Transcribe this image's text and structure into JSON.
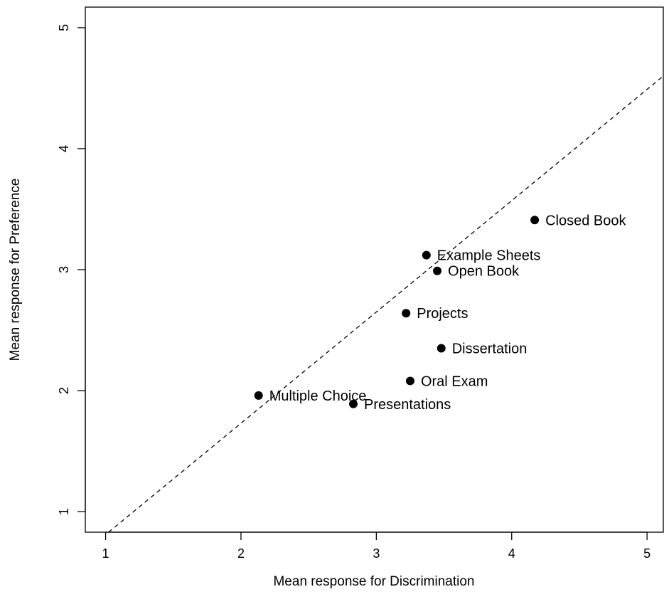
{
  "chart_data": {
    "type": "scatter",
    "title": "",
    "xlabel": "Mean response for Discrimination",
    "ylabel": "Mean response for Preference",
    "xlim": [
      0.85,
      5.12
    ],
    "ylim": [
      0.83,
      5.17
    ],
    "xticks": [
      "1",
      "2",
      "3",
      "4",
      "5"
    ],
    "yticks": [
      "1",
      "2",
      "3",
      "4",
      "5"
    ],
    "grid": false,
    "reference_line": {
      "style": "dashed",
      "slope": 0.92,
      "intercept": -0.11
    },
    "points": [
      {
        "label": "Closed Book",
        "x": 4.17,
        "y": 3.41
      },
      {
        "label": "Example Sheets",
        "x": 3.37,
        "y": 3.12
      },
      {
        "label": "Open Book",
        "x": 3.45,
        "y": 2.99
      },
      {
        "label": "Projects",
        "x": 3.22,
        "y": 2.64
      },
      {
        "label": "Dissertation",
        "x": 3.48,
        "y": 2.35
      },
      {
        "label": "Oral Exam",
        "x": 3.25,
        "y": 2.08
      },
      {
        "label": "Multiple Choice",
        "x": 2.13,
        "y": 1.96
      },
      {
        "label": "Presentations",
        "x": 2.83,
        "y": 1.89
      }
    ]
  }
}
